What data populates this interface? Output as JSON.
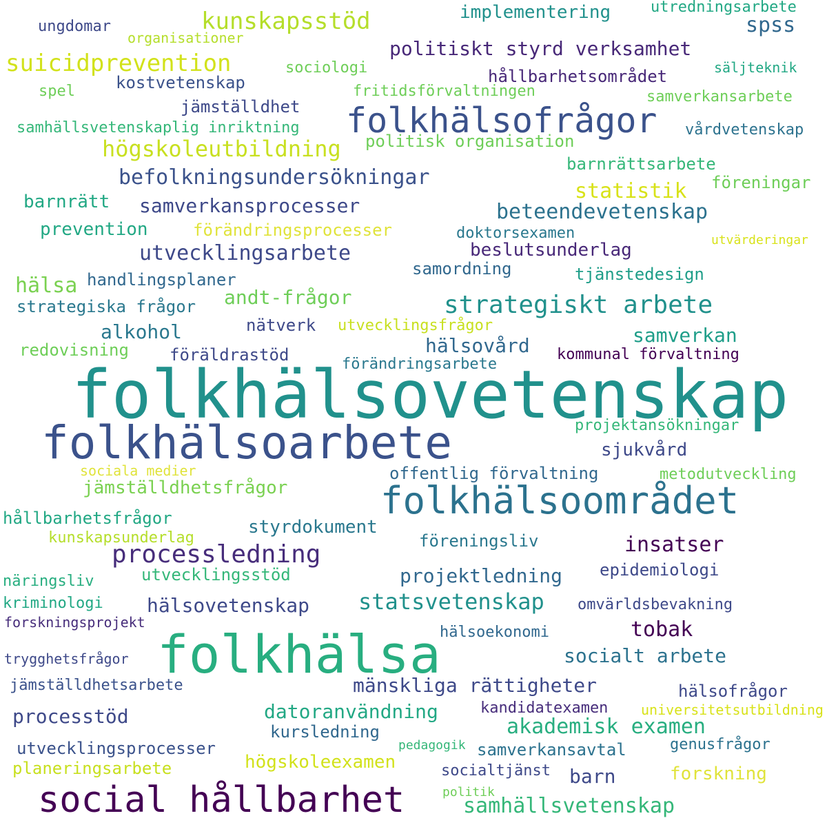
{
  "palette": {
    "p1": "#440154",
    "p2": "#3b528b",
    "p3": "#2c728e",
    "p4": "#21918c",
    "p5": "#28ae80",
    "p6": "#5ec962",
    "p7": "#addc30",
    "p8": "#e0e33b"
  },
  "words": [
    {
      "text": "folkhälsovetenskap",
      "color": "#21918c"
    },
    {
      "text": "folkhälsoarbete",
      "color": "#3b528b"
    },
    {
      "text": "folkhälsa",
      "color": "#28ae80"
    },
    {
      "text": "social hållbarhet",
      "color": "#440154"
    },
    {
      "text": "folkhälsoområdet",
      "color": "#2c728e"
    },
    {
      "text": "folkhälsofrågor",
      "color": "#3b528b"
    },
    {
      "text": "strategiskt arbete",
      "color": "#21918c"
    },
    {
      "text": "processledning",
      "color": "#472d7b"
    },
    {
      "text": "suicidprevention",
      "color": "#d2e21b"
    },
    {
      "text": "kunskapsstöd",
      "color": "#b5de2b"
    },
    {
      "text": "högskoleutbildning",
      "color": "#c8e020"
    },
    {
      "text": "befolkningsundersökningar",
      "color": "#3b528b"
    },
    {
      "text": "utvecklingsarbete",
      "color": "#3e4989"
    },
    {
      "text": "politiskt styrd verksamhet",
      "color": "#482878"
    },
    {
      "text": "statistik",
      "color": "#d8e219"
    },
    {
      "text": "beteendevetenskap",
      "color": "#2c728e"
    },
    {
      "text": "samverkansprocesser",
      "color": "#3e4989"
    },
    {
      "text": "statsvetenskap",
      "color": "#21918c"
    },
    {
      "text": "akademisk examen",
      "color": "#28ae80"
    },
    {
      "text": "hälsovetenskap",
      "color": "#3e4989"
    },
    {
      "text": "samhällsvetenskap",
      "color": "#35b779"
    },
    {
      "text": "mänskliga rättigheter",
      "color": "#3e4989"
    },
    {
      "text": "projektledning",
      "color": "#31688e"
    },
    {
      "text": "datoranvändning",
      "color": "#22a884"
    },
    {
      "text": "socialt arbete",
      "color": "#2c728e"
    },
    {
      "text": "insatser",
      "color": "#440154"
    },
    {
      "text": "samverkan",
      "color": "#1f9e89"
    },
    {
      "text": "hälsovård",
      "color": "#31688e"
    },
    {
      "text": "andt-frågor",
      "color": "#6ece58"
    },
    {
      "text": "styrdokument",
      "color": "#2a788e"
    },
    {
      "text": "utvecklingsprocesser",
      "color": "#3b528b"
    },
    {
      "text": "jämställdhetsfrågor",
      "color": "#7ad151"
    },
    {
      "text": "processtöd",
      "color": "#3e4989"
    },
    {
      "text": "tobak",
      "color": "#440154"
    },
    {
      "text": "offentlig förvaltning",
      "color": "#31688e"
    },
    {
      "text": "högskoleexamen",
      "color": "#d2e21b"
    },
    {
      "text": "planeringsarbete",
      "color": "#c8e020"
    },
    {
      "text": "alkohol",
      "color": "#2a788e"
    },
    {
      "text": "spss",
      "color": "#31688e"
    },
    {
      "text": "barnrätt",
      "color": "#22a884"
    },
    {
      "text": "prevention",
      "color": "#22a884"
    },
    {
      "text": "hälsa",
      "color": "#7ad151"
    },
    {
      "text": "sjukvård",
      "color": "#3e4989"
    },
    {
      "text": "förändringsprocesser",
      "color": "#e0e33b"
    },
    {
      "text": "beslutsunderlag",
      "color": "#482878"
    },
    {
      "text": "barn",
      "color": "#3e4989"
    },
    {
      "text": "forskning",
      "color": "#e0e33b"
    },
    {
      "text": "implementering",
      "color": "#21918c"
    },
    {
      "text": "strategiska frågor",
      "color": "#2a788e"
    },
    {
      "text": "handlingsplaner",
      "color": "#31688e"
    },
    {
      "text": "nätverk",
      "color": "#3e4989"
    },
    {
      "text": "hållbarhetsområdet",
      "color": "#482878"
    },
    {
      "text": "kostvetenskap",
      "color": "#3b528b"
    },
    {
      "text": "jämställdhet",
      "color": "#3e4989"
    },
    {
      "text": "politisk organisation",
      "color": "#6ece58"
    },
    {
      "text": "barnrättsarbete",
      "color": "#35b779"
    },
    {
      "text": "föreningar",
      "color": "#6ece58"
    },
    {
      "text": "doktorsexamen",
      "color": "#2a788e"
    },
    {
      "text": "samordning",
      "color": "#31688e"
    },
    {
      "text": "tjänstedesign",
      "color": "#1f9e89"
    },
    {
      "text": "föräldrastöd",
      "color": "#3e4989"
    },
    {
      "text": "förändringsarbete",
      "color": "#2a788e"
    },
    {
      "text": "kommunal förvaltning",
      "color": "#440154"
    },
    {
      "text": "redovisning",
      "color": "#6ece58"
    },
    {
      "text": "utvecklingsfrågor",
      "color": "#c8e020"
    },
    {
      "text": "projektansökningar",
      "color": "#35b779"
    },
    {
      "text": "metodutveckling",
      "color": "#6ece58"
    },
    {
      "text": "sociala medier",
      "color": "#e0e33b"
    },
    {
      "text": "hållbarhetsfrågor",
      "color": "#22a884"
    },
    {
      "text": "kunskapsunderlag",
      "color": "#b5de2b"
    },
    {
      "text": "föreningsliv",
      "color": "#2a788e"
    },
    {
      "text": "utvecklingsstöd",
      "color": "#35b779"
    },
    {
      "text": "epidemiologi",
      "color": "#3e4989"
    },
    {
      "text": "näringsliv",
      "color": "#28ae80"
    },
    {
      "text": "kriminologi",
      "color": "#22a884"
    },
    {
      "text": "forskningsprojekt",
      "color": "#472d7b"
    },
    {
      "text": "omvärldsbevakning",
      "color": "#3e4989"
    },
    {
      "text": "hälsoekonomi",
      "color": "#31688e"
    },
    {
      "text": "trygghetsfrågor",
      "color": "#3e4989"
    },
    {
      "text": "jämställdhetsarbete",
      "color": "#3b528b"
    },
    {
      "text": "hälsofrågor",
      "color": "#3e4989"
    },
    {
      "text": "kandidatexamen",
      "color": "#472d7b"
    },
    {
      "text": "universitetsutbildning",
      "color": "#d8e219"
    },
    {
      "text": "kursledning",
      "color": "#31688e"
    },
    {
      "text": "pedagogik",
      "color": "#35b779"
    },
    {
      "text": "samverkansavtal",
      "color": "#2c728e"
    },
    {
      "text": "genusfrågor",
      "color": "#2c728e"
    },
    {
      "text": "socialtjänst",
      "color": "#3e4989"
    },
    {
      "text": "politik",
      "color": "#6ece58"
    },
    {
      "text": "ungdomar",
      "color": "#3e4989"
    },
    {
      "text": "organisationer",
      "color": "#b5de2b"
    },
    {
      "text": "sociologi",
      "color": "#6ece58"
    },
    {
      "text": "spel",
      "color": "#6ece58"
    },
    {
      "text": "fritidsförvaltningen",
      "color": "#6ece58"
    },
    {
      "text": "samhällsvetenskaplig inriktning",
      "color": "#35b779"
    },
    {
      "text": "utredningsarbete",
      "color": "#22a884"
    },
    {
      "text": "säljteknik",
      "color": "#22a884"
    },
    {
      "text": "samverkansarbete",
      "color": "#6ece58"
    },
    {
      "text": "vårdvetenskap",
      "color": "#2c728e"
    },
    {
      "text": "utvärderingar",
      "color": "#d8e219"
    }
  ]
}
